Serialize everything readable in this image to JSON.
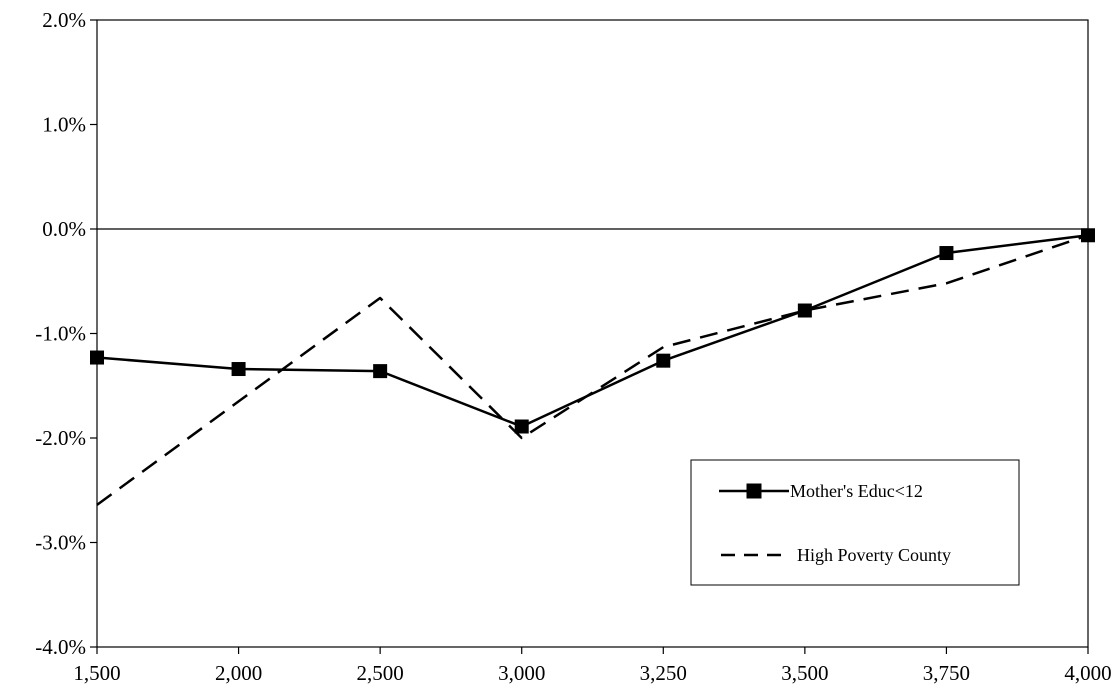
{
  "chart_data": {
    "type": "line",
    "title": "",
    "xlabel": "",
    "ylabel": "",
    "categories": [
      "1,500",
      "2,000",
      "2,500",
      "3,000",
      "3,250",
      "3,500",
      "3,750",
      "4,000"
    ],
    "ylim": [
      -4.0,
      2.0
    ],
    "yticks": [
      -4.0,
      -3.0,
      -2.0,
      -1.0,
      0.0,
      1.0,
      2.0
    ],
    "y_tick_labels": [
      "-4.0%",
      "-3.0%",
      "-2.0%",
      "-1.0%",
      "0.0%",
      "1.0%",
      "2.0%"
    ],
    "grid": false,
    "zero_line": true,
    "legend_position": "lower-right",
    "series": [
      {
        "name": "Mother's Educ<12",
        "values": [
          -1.23,
          -1.34,
          -1.36,
          -1.89,
          -1.26,
          -0.78,
          -0.23,
          -0.06
        ],
        "line_style": "solid",
        "marker": "square",
        "color": "#000000"
      },
      {
        "name": "High Poverty County",
        "values": [
          -2.64,
          -1.65,
          -0.66,
          -2.0,
          -1.13,
          -0.78,
          -0.52,
          -0.06
        ],
        "line_style": "dashed",
        "marker": "none",
        "color": "#000000"
      }
    ]
  }
}
